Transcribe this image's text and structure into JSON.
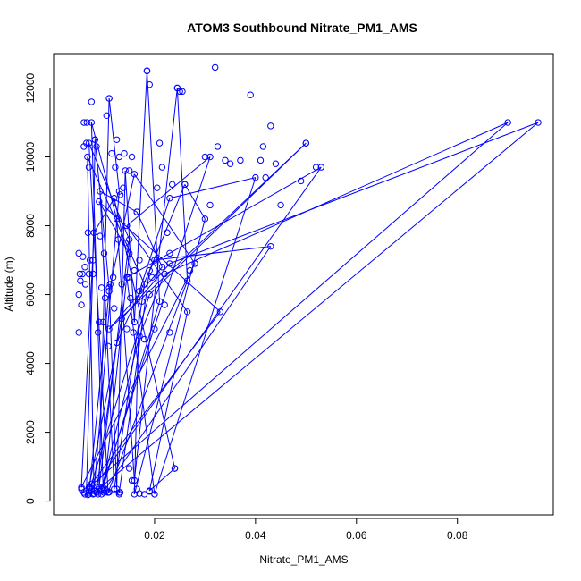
{
  "chart_data": {
    "type": "scatter",
    "title": "ATOM3 Southbound Nitrate_PM1_AMS",
    "xlabel": "Nitrate_PM1_AMS",
    "ylabel": "Altitude (m)",
    "xlim": [
      0.0,
      0.099
    ],
    "ylim": [
      -400,
      13000
    ],
    "x_ticks": [
      0.02,
      0.04,
      0.06,
      0.08
    ],
    "x_tick_labels": [
      "0.02",
      "0.04",
      "0.06",
      "0.08"
    ],
    "y_ticks": [
      0,
      2000,
      4000,
      6000,
      8000,
      10000,
      12000
    ],
    "y_tick_labels": [
      "0",
      "2000",
      "4000",
      "6000",
      "8000",
      "10000",
      "12000"
    ],
    "grid": false,
    "series_color": "#0000ff",
    "marker": "open-circle",
    "connected": true,
    "series": [
      {
        "points": [
          [
            0.0065,
            300
          ],
          [
            0.0078,
            7000
          ],
          [
            0.0082,
            10500
          ],
          [
            0.011,
            6200
          ],
          [
            0.0125,
            350
          ],
          [
            0.0142,
            9600
          ],
          [
            0.016,
            5200
          ],
          [
            0.0185,
            12500
          ],
          [
            0.021,
            5800
          ],
          [
            0.0098,
            400
          ],
          [
            0.0075,
            11000
          ],
          [
            0.0125,
            8200
          ],
          [
            0.016,
            600
          ],
          [
            0.0245,
            12000
          ],
          [
            0.0265,
            6400
          ],
          [
            0.0108,
            250
          ],
          [
            0.007,
            10400
          ],
          [
            0.015,
            7600
          ],
          [
            0.009,
            400
          ],
          [
            0.011,
            11700
          ],
          [
            0.013,
            9000
          ],
          [
            0.008,
            300
          ],
          [
            0.0067,
            10000
          ],
          [
            0.018,
            6300
          ],
          [
            0.012,
            350
          ],
          [
            0.0092,
            9000
          ],
          [
            0.0165,
            8400
          ],
          [
            0.0215,
            6800
          ],
          [
            0.011,
            5000
          ],
          [
            0.05,
            10400
          ],
          [
            0.019,
            6000
          ],
          [
            0.0075,
            500
          ],
          [
            0.033,
            5500
          ],
          [
            0.009,
            8700
          ],
          [
            0.015,
            7200
          ],
          [
            0.01,
            300
          ],
          [
            0.043,
            7400
          ],
          [
            0.02,
            7000
          ],
          [
            0.0125,
            4600
          ],
          [
            0.0085,
            300
          ],
          [
            0.096,
            11000
          ],
          [
            0.023,
            6900
          ],
          [
            0.0135,
            5300
          ],
          [
            0.007,
            400
          ],
          [
            0.09,
            11000
          ],
          [
            0.022,
            6600
          ],
          [
            0.017,
            4800
          ],
          [
            0.0095,
            350
          ],
          [
            0.031,
            10000
          ],
          [
            0.0145,
            8000
          ],
          [
            0.0265,
            5500
          ],
          [
            0.019,
            300
          ],
          [
            0.024,
            950
          ],
          [
            0.012,
            8800
          ],
          [
            0.008,
            7800
          ],
          [
            0.0055,
            400
          ],
          [
            0.028,
            6900
          ],
          [
            0.016,
            9500
          ],
          [
            0.011,
            6100
          ],
          [
            0.007,
            200
          ],
          [
            0.053,
            9700
          ],
          [
            0.023,
            7200
          ],
          [
            0.0145,
            6500
          ],
          [
            0.02,
            200
          ],
          [
            0.04,
            9400
          ],
          [
            0.023,
            8800
          ],
          [
            0.017,
            6100
          ],
          [
            0.016,
            200
          ],
          [
            0.03,
            8200
          ],
          [
            0.026,
            9200
          ],
          [
            0.019,
            6700
          ],
          [
            0.013,
            250
          ]
        ]
      }
    ],
    "points": [
      [
        0.005,
        4900
      ],
      [
        0.005,
        6000
      ],
      [
        0.005,
        7200
      ],
      [
        0.0052,
        6600
      ],
      [
        0.0053,
        6400
      ],
      [
        0.0055,
        5700
      ],
      [
        0.0057,
        6600
      ],
      [
        0.0058,
        7100
      ],
      [
        0.006,
        10300
      ],
      [
        0.006,
        11000
      ],
      [
        0.0062,
        6800
      ],
      [
        0.0063,
        6300
      ],
      [
        0.0065,
        10400
      ],
      [
        0.0066,
        11000
      ],
      [
        0.0068,
        7800
      ],
      [
        0.007,
        9700
      ],
      [
        0.007,
        6600
      ],
      [
        0.0072,
        7000
      ],
      [
        0.0075,
        11600
      ],
      [
        0.0078,
        6600
      ],
      [
        0.0082,
        10500
      ],
      [
        0.0085,
        10300
      ],
      [
        0.0088,
        4900
      ],
      [
        0.009,
        5200
      ],
      [
        0.0092,
        7700
      ],
      [
        0.0095,
        6200
      ],
      [
        0.0098,
        5200
      ],
      [
        0.01,
        7200
      ],
      [
        0.0102,
        5900
      ],
      [
        0.0105,
        11200
      ],
      [
        0.0108,
        4500
      ],
      [
        0.011,
        11700
      ],
      [
        0.0112,
        6300
      ],
      [
        0.0115,
        10100
      ],
      [
        0.0118,
        6500
      ],
      [
        0.012,
        5600
      ],
      [
        0.0122,
        9700
      ],
      [
        0.0125,
        10500
      ],
      [
        0.0128,
        7600
      ],
      [
        0.013,
        10000
      ],
      [
        0.0132,
        8900
      ],
      [
        0.0135,
        6300
      ],
      [
        0.0138,
        9100
      ],
      [
        0.014,
        10100
      ],
      [
        0.0142,
        7500
      ],
      [
        0.0145,
        5000
      ],
      [
        0.0148,
        6500
      ],
      [
        0.015,
        9600
      ],
      [
        0.0152,
        5900
      ],
      [
        0.0155,
        10000
      ],
      [
        0.0158,
        4900
      ],
      [
        0.016,
        6700
      ],
      [
        0.0165,
        8400
      ],
      [
        0.017,
        7000
      ],
      [
        0.0175,
        5800
      ],
      [
        0.018,
        4700
      ],
      [
        0.0185,
        12500
      ],
      [
        0.019,
        12100
      ],
      [
        0.0195,
        6500
      ],
      [
        0.02,
        5000
      ],
      [
        0.0205,
        9100
      ],
      [
        0.021,
        10400
      ],
      [
        0.0215,
        9700
      ],
      [
        0.022,
        5700
      ],
      [
        0.0225,
        7800
      ],
      [
        0.023,
        4900
      ],
      [
        0.0235,
        9200
      ],
      [
        0.0245,
        12000
      ],
      [
        0.025,
        11900
      ],
      [
        0.0255,
        11900
      ],
      [
        0.026,
        9200
      ],
      [
        0.027,
        6700
      ],
      [
        0.028,
        6900
      ],
      [
        0.03,
        10000
      ],
      [
        0.031,
        8600
      ],
      [
        0.032,
        12600
      ],
      [
        0.0325,
        10300
      ],
      [
        0.034,
        9900
      ],
      [
        0.035,
        9800
      ],
      [
        0.037,
        9900
      ],
      [
        0.039,
        11800
      ],
      [
        0.041,
        9900
      ],
      [
        0.0415,
        10300
      ],
      [
        0.042,
        9400
      ],
      [
        0.043,
        10900
      ],
      [
        0.044,
        9800
      ],
      [
        0.045,
        8600
      ],
      [
        0.049,
        9300
      ],
      [
        0.05,
        10400
      ],
      [
        0.052,
        9700
      ],
      [
        0.0055,
        350
      ],
      [
        0.006,
        250
      ],
      [
        0.0062,
        200
      ],
      [
        0.0065,
        300
      ],
      [
        0.0068,
        180
      ],
      [
        0.007,
        250
      ],
      [
        0.0072,
        400
      ],
      [
        0.0075,
        300
      ],
      [
        0.0078,
        200
      ],
      [
        0.008,
        220
      ],
      [
        0.0082,
        300
      ],
      [
        0.0085,
        250
      ],
      [
        0.0088,
        200
      ],
      [
        0.009,
        350
      ],
      [
        0.0092,
        280
      ],
      [
        0.0095,
        200
      ],
      [
        0.01,
        250
      ],
      [
        0.0105,
        300
      ],
      [
        0.011,
        260
      ],
      [
        0.013,
        200
      ],
      [
        0.0132,
        250
      ],
      [
        0.015,
        950
      ],
      [
        0.0155,
        600
      ],
      [
        0.0165,
        350
      ],
      [
        0.017,
        220
      ],
      [
        0.018,
        200
      ],
      [
        0.019,
        280
      ],
      [
        0.02,
        200
      ],
      [
        0.024,
        950
      ]
    ]
  }
}
